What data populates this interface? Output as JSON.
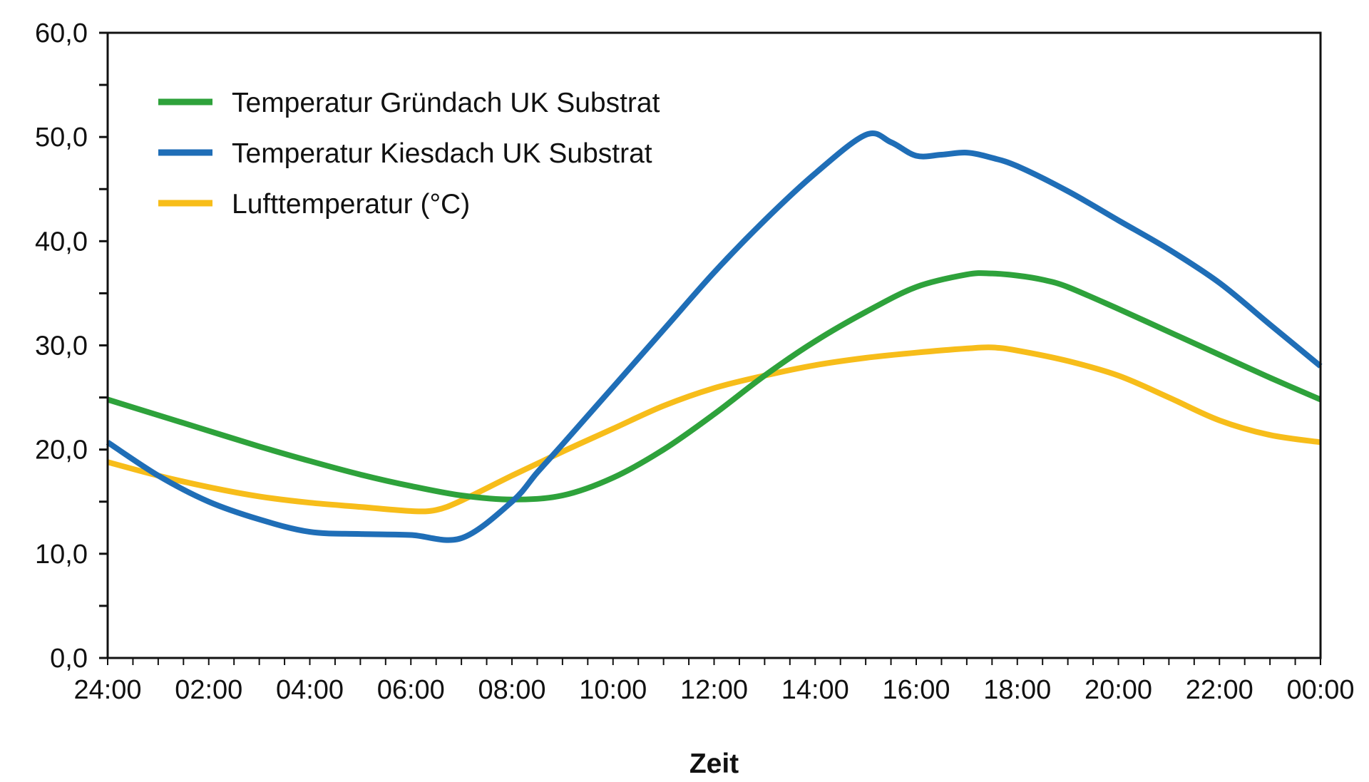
{
  "chart_data": {
    "type": "line",
    "title": "",
    "xlabel": "Zeit",
    "ylabel": "",
    "ylim": [
      0,
      60
    ],
    "xlim": [
      0,
      24
    ],
    "x_unit": "hours",
    "y_ticks": [
      "0,0",
      "10,0",
      "20,0",
      "30,0",
      "40,0",
      "50,0",
      "60,0"
    ],
    "y_tick_values": [
      0,
      10,
      20,
      30,
      40,
      50,
      60
    ],
    "x_ticks": [
      "24:00",
      "02:00",
      "04:00",
      "06:00",
      "08:00",
      "10:00",
      "12:00",
      "14:00",
      "16:00",
      "18:00",
      "20:00",
      "22:00",
      "00:00"
    ],
    "grid": false,
    "legend_position": "top-left",
    "series": [
      {
        "name": "Temperatur Gründach UK Substrat",
        "color": "#2ea23b",
        "x": [
          0,
          1,
          2,
          3,
          4,
          5,
          6,
          7,
          8,
          9,
          10,
          11,
          12,
          13,
          14,
          15,
          16,
          17,
          17.5,
          18,
          18.5,
          19,
          20,
          21,
          22,
          23,
          24
        ],
        "values": [
          24.8,
          23.3,
          21.8,
          20.3,
          18.9,
          17.6,
          16.5,
          15.6,
          15.2,
          15.6,
          17.3,
          20.0,
          23.4,
          27.1,
          30.4,
          33.2,
          35.6,
          36.8,
          36.9,
          36.7,
          36.3,
          35.6,
          33.5,
          31.3,
          29.1,
          26.9,
          24.8
        ]
      },
      {
        "name": "Temperatur Kiesdach UK Substrat",
        "color": "#1f6eb7",
        "x": [
          0,
          1,
          2,
          3,
          4,
          5,
          6,
          7,
          8,
          8.5,
          9,
          10,
          11,
          12,
          13,
          14,
          15,
          15.5,
          16,
          16.5,
          17,
          17.5,
          18,
          19,
          20,
          21,
          22,
          23,
          24
        ],
        "values": [
          20.7,
          17.5,
          15.0,
          13.3,
          12.1,
          11.9,
          11.8,
          11.5,
          15.0,
          17.8,
          20.5,
          26.0,
          31.5,
          37.0,
          42.0,
          46.5,
          50.2,
          49.5,
          48.2,
          48.3,
          48.5,
          48.0,
          47.2,
          44.8,
          42.0,
          39.2,
          36.0,
          32.0,
          28.0
        ]
      },
      {
        "name": "Lufttemperatur (°C)",
        "color": "#f7bd1a",
        "x": [
          0,
          1,
          2,
          3,
          4,
          5,
          6,
          6.5,
          7,
          8,
          9,
          10,
          11,
          12,
          13,
          14,
          15,
          16,
          17,
          17.5,
          18,
          19,
          20,
          21,
          22,
          23,
          24
        ],
        "values": [
          18.8,
          17.5,
          16.4,
          15.5,
          14.9,
          14.5,
          14.1,
          14.2,
          15.1,
          17.5,
          19.8,
          22.0,
          24.2,
          25.9,
          27.1,
          28.1,
          28.8,
          29.3,
          29.7,
          29.8,
          29.5,
          28.5,
          27.1,
          25.0,
          22.8,
          21.4,
          20.7
        ]
      }
    ]
  }
}
